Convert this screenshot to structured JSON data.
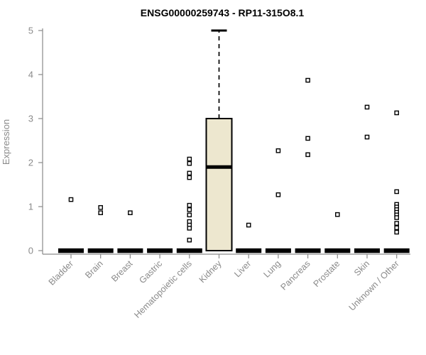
{
  "colors": {
    "background": "#FFFFFF",
    "box_fill": "#EDE7CF",
    "box_stroke": "#000000",
    "median_color": "#000000",
    "outlier_fill": "#FFFFFF",
    "outlier_stroke": "#000000",
    "axis_color": "#8A8A8A",
    "label_color": "#8A8A8A",
    "title_color": "#000000"
  },
  "chart_data": {
    "type": "boxplot",
    "title": "ENSG00000259743 - RP11-315O8.1",
    "ylabel": "Expression",
    "ylim": [
      0,
      5
    ],
    "yticks": [
      0,
      1,
      2,
      3,
      4,
      5
    ],
    "grid": false,
    "categories": [
      "Bladder",
      "Brain",
      "Breast",
      "Gastric",
      "Hematopoietic cells",
      "Kidney",
      "Liver",
      "Lung",
      "Pancreas",
      "Prostate",
      "Skin",
      "Unknown / Other"
    ],
    "boxes": [
      {
        "category": "Bladder",
        "whisker_low": 0,
        "q1": 0,
        "median": 0,
        "q3": 0,
        "whisker_high": 0,
        "outliers": [
          1.16
        ]
      },
      {
        "category": "Brain",
        "whisker_low": 0,
        "q1": 0,
        "median": 0,
        "q3": 0,
        "whisker_high": 0,
        "outliers": [
          0.98,
          0.86
        ]
      },
      {
        "category": "Breast",
        "whisker_low": 0,
        "q1": 0,
        "median": 0,
        "q3": 0,
        "whisker_high": 0,
        "outliers": [
          0.86
        ]
      },
      {
        "category": "Gastric",
        "whisker_low": 0,
        "q1": 0,
        "median": 0,
        "q3": 0,
        "whisker_high": 0,
        "outliers": []
      },
      {
        "category": "Hematopoietic cells",
        "whisker_low": 0,
        "q1": 0,
        "median": 0,
        "q3": 0,
        "whisker_high": 0,
        "outliers": [
          2.08,
          1.98,
          1.76,
          1.66,
          1.03,
          0.93,
          0.81,
          0.66,
          0.58,
          0.51,
          0.24
        ]
      },
      {
        "category": "Kidney",
        "whisker_low": 0,
        "q1": 0,
        "median": 1.9,
        "q3": 3.0,
        "whisker_high": 5.0,
        "outliers": []
      },
      {
        "category": "Liver",
        "whisker_low": 0,
        "q1": 0,
        "median": 0,
        "q3": 0,
        "whisker_high": 0,
        "outliers": [
          0.58
        ]
      },
      {
        "category": "Lung",
        "whisker_low": 0,
        "q1": 0,
        "median": 0,
        "q3": 0,
        "whisker_high": 0,
        "outliers": [
          2.27,
          1.27
        ]
      },
      {
        "category": "Pancreas",
        "whisker_low": 0,
        "q1": 0,
        "median": 0,
        "q3": 0,
        "whisker_high": 0,
        "outliers": [
          3.87,
          2.55,
          2.18
        ]
      },
      {
        "category": "Prostate",
        "whisker_low": 0,
        "q1": 0,
        "median": 0,
        "q3": 0,
        "whisker_high": 0,
        "outliers": [
          0.82
        ]
      },
      {
        "category": "Skin",
        "whisker_low": 0,
        "q1": 0,
        "median": 0,
        "q3": 0,
        "whisker_high": 0,
        "outliers": [
          3.26,
          2.58
        ]
      },
      {
        "category": "Unknown / Other",
        "whisker_low": 0,
        "q1": 0,
        "median": 0,
        "q3": 0,
        "whisker_high": 0,
        "outliers": [
          3.13,
          1.34,
          1.05,
          0.99,
          0.93,
          0.87,
          0.81,
          0.75,
          0.62,
          0.52,
          0.42
        ]
      }
    ]
  }
}
